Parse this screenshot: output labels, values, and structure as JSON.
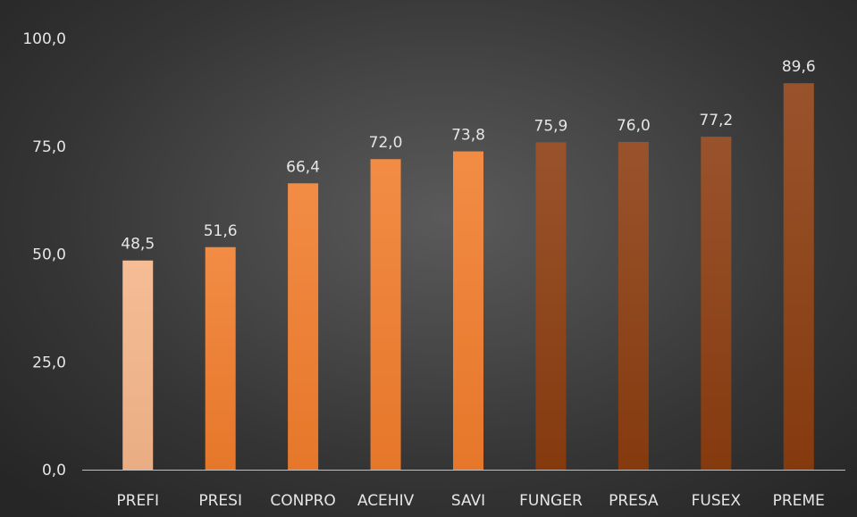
{
  "chart_data": {
    "type": "bar",
    "title": "",
    "xlabel": "",
    "ylabel": "",
    "categories": [
      "PREFI",
      "PRESI",
      "CONPRO",
      "ACEHIV",
      "SAVI",
      "FUNGER",
      "PRESA",
      "FUSEX",
      "PREME"
    ],
    "values": [
      48.5,
      51.6,
      66.4,
      72.0,
      73.8,
      75.9,
      76.0,
      77.2,
      89.6
    ],
    "value_labels": [
      "48,5",
      "51,6",
      "66,4",
      "72,0",
      "73,8",
      "75,9",
      "76,0",
      "77,2",
      "89,6"
    ],
    "ylim": [
      0,
      100
    ],
    "yticks": [
      0,
      25,
      50,
      75,
      100
    ],
    "ytick_labels": [
      "0,0",
      "25,0",
      "50,0",
      "75,0",
      "100,0"
    ],
    "grid": false,
    "bar_colors": [
      "#f4b488",
      "#f07c2c",
      "#f07c2c",
      "#f07c2c",
      "#f07c2c",
      "#8b3c0f",
      "#8b3c0f",
      "#8b3c0f",
      "#8b3c0f"
    ],
    "background": "#404040",
    "text_color": "#e6e6e6",
    "axis_color": "#bfbfbf"
  }
}
